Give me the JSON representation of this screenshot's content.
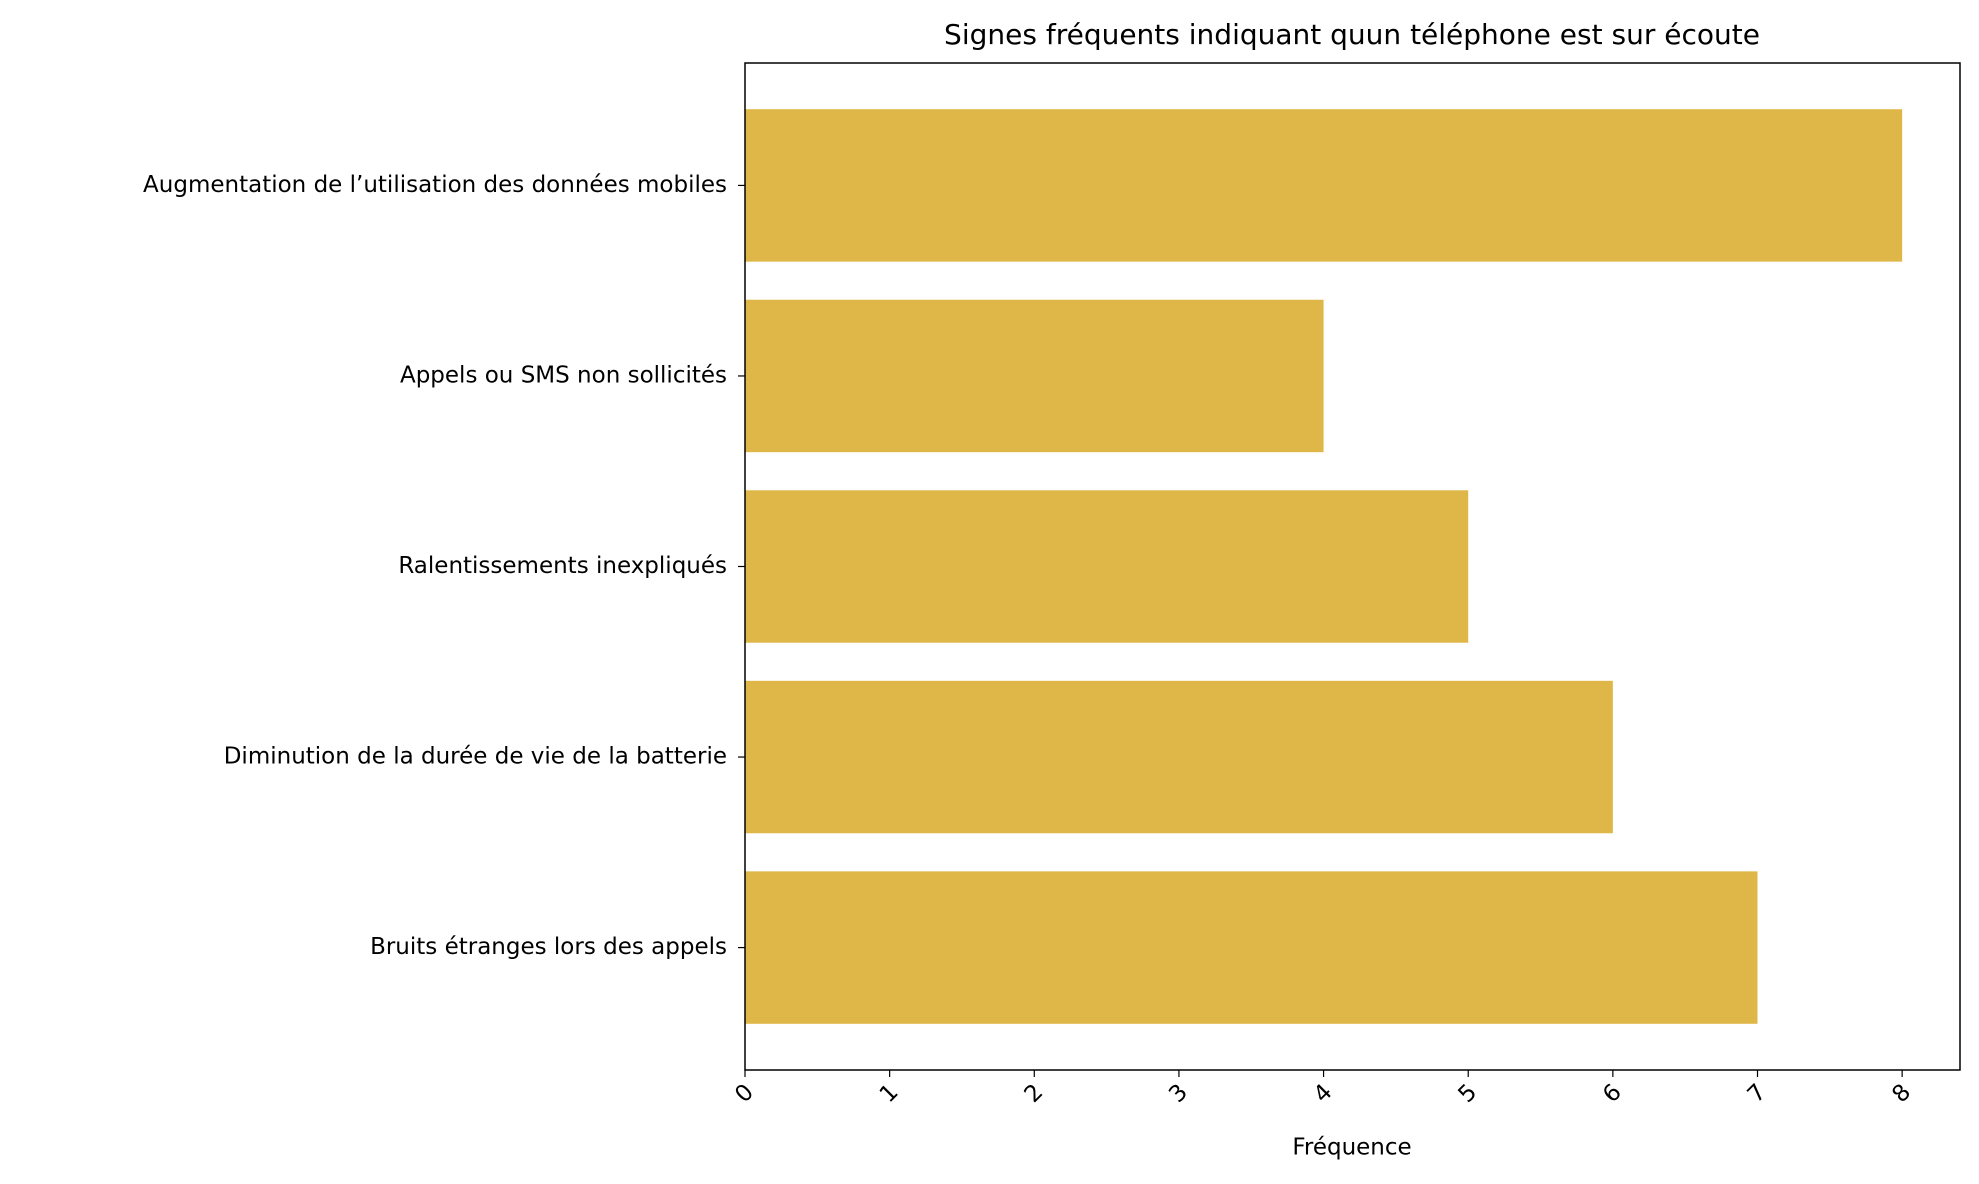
{
  "chart_data": {
    "type": "barh",
    "title": "Signes fréquents indiquant quun téléphone est sur écoute",
    "xlabel": "Fréquence",
    "categories": [
      "Augmentation de l’utilisation des données mobiles",
      "Appels ou SMS non sollicités",
      "Ralentissements inexpliqués",
      "Diminution de la durée de vie de la batterie",
      "Bruits étranges lors des appels"
    ],
    "values": [
      8,
      4,
      5,
      6,
      7
    ],
    "color": "#dfb748",
    "xlim": [
      0,
      8.4
    ],
    "xticks": [
      0,
      1,
      2,
      3,
      4,
      5,
      6,
      7,
      8
    ],
    "grid": false
  }
}
